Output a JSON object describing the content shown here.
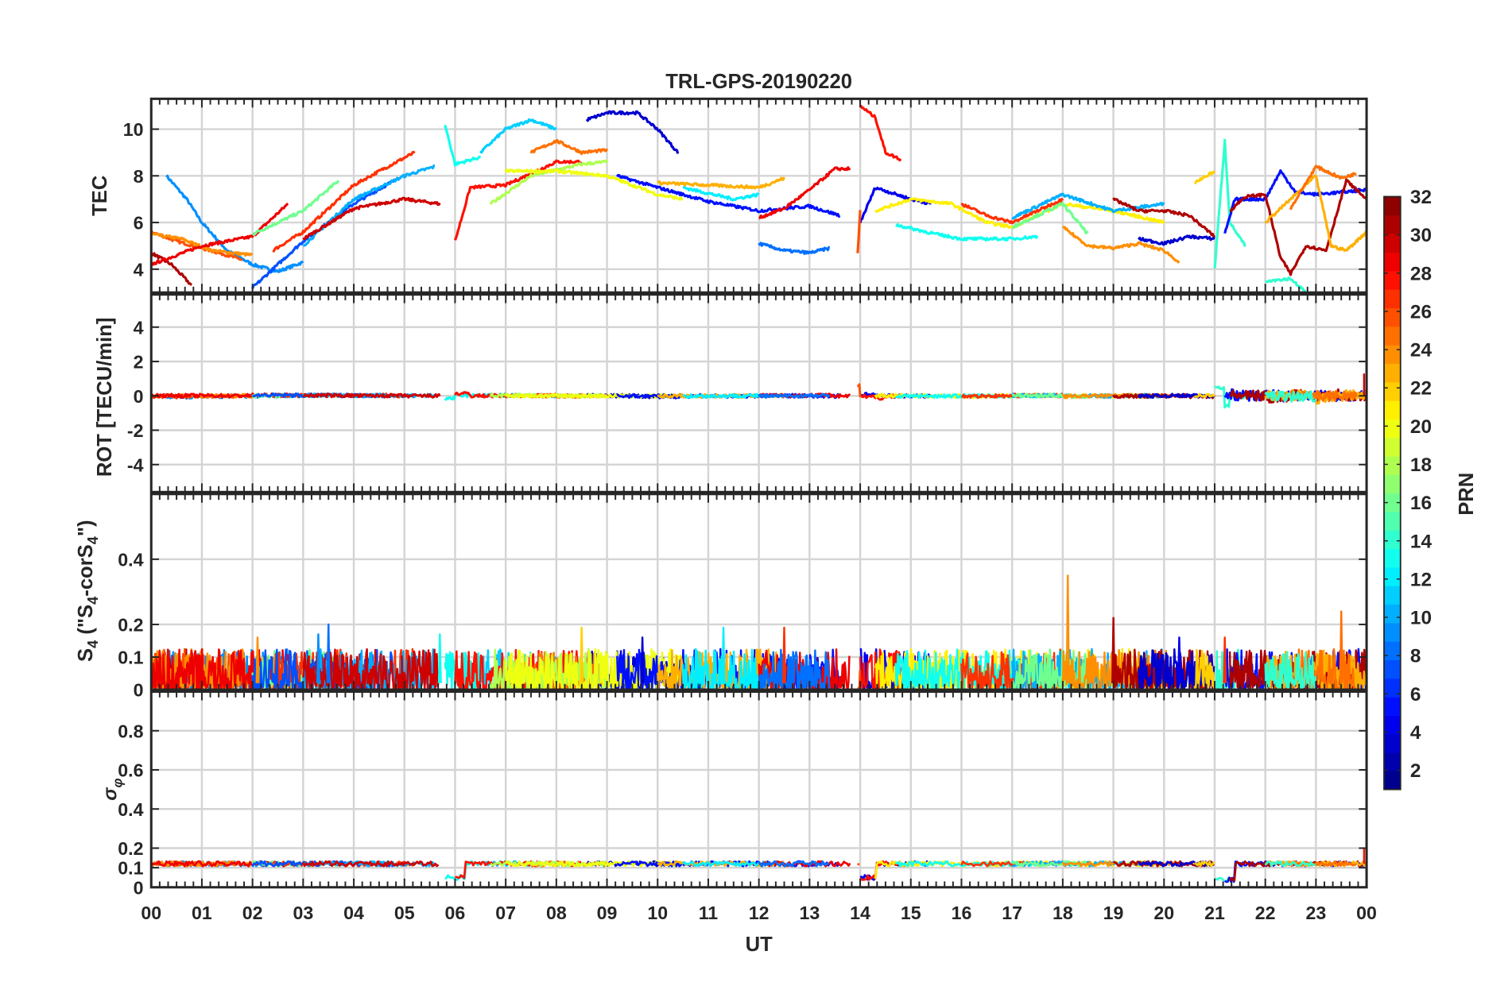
{
  "chart_data": {
    "type": "line",
    "title": "TRL-GPS-20190220",
    "xlabel": "UT",
    "xlim": [
      0,
      24
    ],
    "x_tick_labels": [
      "00",
      "01",
      "02",
      "03",
      "04",
      "05",
      "06",
      "07",
      "08",
      "09",
      "10",
      "11",
      "12",
      "13",
      "14",
      "15",
      "16",
      "17",
      "18",
      "19",
      "20",
      "21",
      "22",
      "23",
      "00"
    ],
    "grid": true,
    "colorbar": {
      "label": "PRN",
      "range": [
        1,
        32
      ],
      "colormap": "jet",
      "placement": "right",
      "tick_labels": [
        "2",
        "4",
        "6",
        "8",
        "10",
        "12",
        "14",
        "16",
        "18",
        "20",
        "22",
        "24",
        "26",
        "28",
        "30",
        "32"
      ]
    },
    "panels": [
      {
        "id": "tec",
        "ylabel": "TEC",
        "ylim": [
          3,
          11.3
        ],
        "y_ticks": [
          4,
          6,
          8,
          10
        ],
        "y_tick_labels": [
          "4",
          "6",
          "8",
          "10"
        ]
      },
      {
        "id": "rot",
        "ylabel": "ROT [TECU/min]",
        "ylim": [
          -5.6,
          5.9
        ],
        "y_ticks": [
          -4,
          -2,
          0,
          2,
          4
        ],
        "y_tick_labels": [
          "-4",
          "-2",
          "0",
          "2",
          "4"
        ]
      },
      {
        "id": "s4",
        "ylabel_main": "S",
        "ylabel_sub": "4",
        "ylabel_paren": " (\"S",
        "ylabel_sub2": "4",
        "ylabel_mid": "-corS",
        "ylabel_sub3": "4",
        "ylabel_end": "\")",
        "ylim": [
          0,
          0.6
        ],
        "y_ticks": [
          0,
          0.1,
          0.2,
          0.4
        ],
        "y_tick_labels": [
          "0",
          "0.1",
          "0.2",
          "0.4"
        ]
      },
      {
        "id": "sigma",
        "ylabel_main": "σ",
        "ylabel_sub": "φ",
        "ylim": [
          0,
          1.0
        ],
        "y_ticks": [
          0,
          0.1,
          0.2,
          0.4,
          0.6,
          0.8
        ],
        "y_tick_labels": [
          "0",
          "0.1",
          "0.2",
          "0.4",
          "0.6",
          "0.8"
        ]
      }
    ],
    "tec_series": [
      {
        "prn": 9,
        "points": [
          [
            0.3,
            8
          ],
          [
            0.7,
            7
          ],
          [
            1.0,
            6
          ],
          [
            1.5,
            4.8
          ],
          [
            2,
            4.2
          ],
          [
            2.5,
            3.9
          ],
          [
            3,
            4.3
          ]
        ]
      },
      {
        "prn": 31,
        "points": [
          [
            0,
            4.7
          ],
          [
            0.4,
            4.2
          ],
          [
            0.8,
            3.3
          ]
        ]
      },
      {
        "prn": 26,
        "points": [
          [
            0,
            5.6
          ],
          [
            0.5,
            5.2
          ],
          [
            1,
            4.9
          ],
          [
            1.5,
            4.6
          ],
          [
            1.8,
            4.4
          ]
        ]
      },
      {
        "prn": 24,
        "points": [
          [
            0,
            5.5
          ],
          [
            0.6,
            5.3
          ],
          [
            1.2,
            4.8
          ],
          [
            2,
            4.6
          ]
        ]
      },
      {
        "prn": 29,
        "points": [
          [
            0,
            4.2
          ],
          [
            1,
            5
          ],
          [
            2,
            5.4
          ],
          [
            2.7,
            6.8
          ]
        ]
      },
      {
        "prn": 16,
        "points": [
          [
            2,
            5.5
          ],
          [
            3,
            6.5
          ],
          [
            3.7,
            7.8
          ]
        ]
      },
      {
        "prn": 27,
        "points": [
          [
            2.4,
            4.8
          ],
          [
            3,
            5.6
          ],
          [
            4,
            7.6
          ],
          [
            4.5,
            8.2
          ],
          [
            5.2,
            9
          ]
        ]
      },
      {
        "prn": 7,
        "points": [
          [
            2,
            3.2
          ],
          [
            3,
            5.2
          ],
          [
            4,
            6.8
          ],
          [
            4.8,
            7.8
          ]
        ]
      },
      {
        "prn": 10,
        "points": [
          [
            3,
            5
          ],
          [
            4,
            7
          ],
          [
            5,
            8
          ],
          [
            5.6,
            8.4
          ]
        ]
      },
      {
        "prn": 30,
        "points": [
          [
            3,
            5.3
          ],
          [
            4,
            6.6
          ],
          [
            5,
            7
          ],
          [
            5.7,
            6.8
          ]
        ]
      },
      {
        "prn": 13,
        "points": [
          [
            5.8,
            10.2
          ],
          [
            6,
            8.5
          ],
          [
            6.5,
            8.8
          ]
        ]
      },
      {
        "prn": 11,
        "points": [
          [
            6.5,
            9
          ],
          [
            7,
            10
          ],
          [
            7.5,
            10.4
          ],
          [
            8,
            10
          ]
        ]
      },
      {
        "prn": 3,
        "points": [
          [
            8.6,
            10.4
          ],
          [
            9,
            10.7
          ],
          [
            9.6,
            10.7
          ],
          [
            10,
            10
          ],
          [
            10.4,
            9
          ]
        ]
      },
      {
        "prn": 28,
        "points": [
          [
            6,
            5.2
          ],
          [
            6.3,
            7.5
          ],
          [
            7,
            7.6
          ],
          [
            8,
            8.6
          ],
          [
            8.5,
            8.6
          ]
        ]
      },
      {
        "prn": 25,
        "points": [
          [
            7.5,
            9
          ],
          [
            8,
            9.5
          ],
          [
            8.5,
            9
          ],
          [
            9,
            9.1
          ]
        ]
      },
      {
        "prn": 18,
        "points": [
          [
            6.7,
            6.8
          ],
          [
            7.5,
            8
          ],
          [
            8.5,
            8.5
          ],
          [
            9,
            8.6
          ]
        ]
      },
      {
        "prn": 20,
        "points": [
          [
            7,
            8.2
          ],
          [
            8,
            8.2
          ],
          [
            9,
            8
          ],
          [
            10,
            7.2
          ],
          [
            10.5,
            7
          ]
        ]
      },
      {
        "prn": 5,
        "points": [
          [
            9.2,
            8
          ],
          [
            10,
            7.5
          ],
          [
            11,
            6.9
          ],
          [
            12,
            6.5
          ],
          [
            13,
            6.7
          ],
          [
            13.6,
            6.3
          ]
        ]
      },
      {
        "prn": 23,
        "points": [
          [
            10,
            7.7
          ],
          [
            11,
            7.6
          ],
          [
            12,
            7.5
          ],
          [
            12.5,
            7.9
          ]
        ]
      },
      {
        "prn": 12,
        "points": [
          [
            10.5,
            7.5
          ],
          [
            11.5,
            7
          ],
          [
            12,
            7.2
          ]
        ]
      },
      {
        "prn": 29,
        "points": [
          [
            12,
            6.2
          ],
          [
            12.5,
            6.6
          ],
          [
            13,
            7.4
          ],
          [
            13.5,
            8.3
          ],
          [
            13.8,
            8.3
          ]
        ]
      },
      {
        "prn": 8,
        "points": [
          [
            12,
            5.1
          ],
          [
            12.5,
            4.8
          ],
          [
            13,
            4.7
          ],
          [
            13.4,
            4.9
          ]
        ]
      },
      {
        "prn": 4,
        "points": [
          [
            14,
            6
          ],
          [
            14.3,
            7.5
          ],
          [
            15,
            7
          ],
          [
            15.4,
            6.8
          ]
        ]
      },
      {
        "prn": 28,
        "points": [
          [
            14,
            11
          ],
          [
            14.3,
            10.5
          ],
          [
            14.5,
            9
          ],
          [
            14.8,
            8.7
          ]
        ]
      },
      {
        "prn": 26,
        "points": [
          [
            13.95,
            4.7
          ],
          [
            14,
            6.5
          ]
        ]
      },
      {
        "prn": 21,
        "points": [
          [
            14.3,
            6.5
          ],
          [
            15,
            7
          ],
          [
            15.8,
            6.8
          ],
          [
            16.5,
            6
          ],
          [
            17,
            5.8
          ],
          [
            17.5,
            6.3
          ],
          [
            18,
            6.8
          ],
          [
            19,
            6.5
          ],
          [
            20,
            6
          ]
        ]
      },
      {
        "prn": 13,
        "points": [
          [
            14.7,
            5.9
          ],
          [
            15.5,
            5.5
          ],
          [
            16,
            5.3
          ],
          [
            17,
            5.3
          ],
          [
            17.5,
            5.4
          ]
        ]
      },
      {
        "prn": 27,
        "points": [
          [
            16,
            6.8
          ],
          [
            16.5,
            6.3
          ],
          [
            17,
            6
          ],
          [
            17.5,
            6.5
          ],
          [
            18,
            7
          ]
        ]
      },
      {
        "prn": 10,
        "points": [
          [
            17,
            6.2
          ],
          [
            18,
            7.2
          ],
          [
            19,
            6.5
          ],
          [
            20,
            6.8
          ]
        ]
      },
      {
        "prn": 16,
        "points": [
          [
            17,
            5.8
          ],
          [
            18,
            6.8
          ],
          [
            18.5,
            5.5
          ]
        ]
      },
      {
        "prn": 24,
        "points": [
          [
            18,
            5.8
          ],
          [
            18.5,
            5
          ],
          [
            19,
            4.9
          ],
          [
            19.5,
            5.1
          ],
          [
            20,
            4.8
          ],
          [
            20.3,
            4.3
          ]
        ]
      },
      {
        "prn": 31,
        "points": [
          [
            19,
            7
          ],
          [
            19.5,
            6.5
          ],
          [
            20,
            6.5
          ],
          [
            20.5,
            6.3
          ],
          [
            21,
            5.4
          ]
        ]
      },
      {
        "prn": 3,
        "points": [
          [
            19.5,
            5.3
          ],
          [
            20,
            5.1
          ],
          [
            20.5,
            5.4
          ],
          [
            21,
            5.3
          ]
        ]
      },
      {
        "prn": 22,
        "points": [
          [
            20.6,
            7.7
          ],
          [
            21,
            8.2
          ]
        ]
      },
      {
        "prn": 14,
        "points": [
          [
            21,
            4
          ],
          [
            21.2,
            9.5
          ],
          [
            21.3,
            6
          ],
          [
            21.6,
            5
          ]
        ]
      },
      {
        "prn": 5,
        "points": [
          [
            21.2,
            5.5
          ],
          [
            21.4,
            7
          ],
          [
            22,
            7
          ],
          [
            22.3,
            8.2
          ],
          [
            22.6,
            7.3
          ],
          [
            23,
            7.2
          ],
          [
            23.5,
            7.3
          ],
          [
            24,
            7.4
          ]
        ]
      },
      {
        "prn": 31,
        "points": [
          [
            21.3,
            6.5
          ],
          [
            21.6,
            7.1
          ],
          [
            22,
            7.2
          ],
          [
            22.3,
            4.5
          ],
          [
            22.5,
            3.8
          ],
          [
            22.8,
            5
          ],
          [
            23.2,
            4.8
          ],
          [
            23.6,
            7.8
          ],
          [
            24,
            7
          ]
        ]
      },
      {
        "prn": 23,
        "points": [
          [
            22,
            6
          ],
          [
            22.5,
            7
          ],
          [
            23,
            8
          ],
          [
            23.3,
            5
          ],
          [
            23.6,
            4.8
          ],
          [
            24,
            5.6
          ]
        ]
      },
      {
        "prn": 25,
        "points": [
          [
            22.5,
            6.6
          ],
          [
            23,
            8.4
          ],
          [
            23.5,
            7.9
          ],
          [
            23.8,
            8.1
          ]
        ]
      },
      {
        "prn": 14,
        "points": [
          [
            22,
            3.5
          ],
          [
            22.5,
            3.6
          ],
          [
            23,
            2.6
          ]
        ]
      }
    ],
    "rot": {
      "center": 0,
      "noise_amplitude": 0.1,
      "noise_amplitude_after_21h": 0.3,
      "max_spike": [
        23.95,
        1.3
      ]
    },
    "s4": {
      "baseline_max": 0.1,
      "spikes": [
        [
          3.5,
          0.2,
          8
        ],
        [
          3.3,
          0.17,
          9
        ],
        [
          2.1,
          0.16,
          24
        ],
        [
          5.7,
          0.17,
          13
        ],
        [
          8.5,
          0.19,
          22
        ],
        [
          11.3,
          0.19,
          12
        ],
        [
          12.5,
          0.19,
          27
        ],
        [
          18.1,
          0.35,
          24
        ],
        [
          19.0,
          0.22,
          31
        ],
        [
          23.5,
          0.24,
          25
        ],
        [
          9.7,
          0.16,
          3
        ],
        [
          21.2,
          0.16,
          27
        ],
        [
          20.3,
          0.16,
          4
        ]
      ]
    },
    "sigma_phi": {
      "baseline": 0.12,
      "dips": [
        [
          5.75,
          6.2,
          0.05
        ],
        [
          14.0,
          14.3,
          0.05
        ],
        [
          21.0,
          21.4,
          0.04
        ]
      ],
      "end_spike": [
        23.95,
        0.2
      ]
    }
  }
}
